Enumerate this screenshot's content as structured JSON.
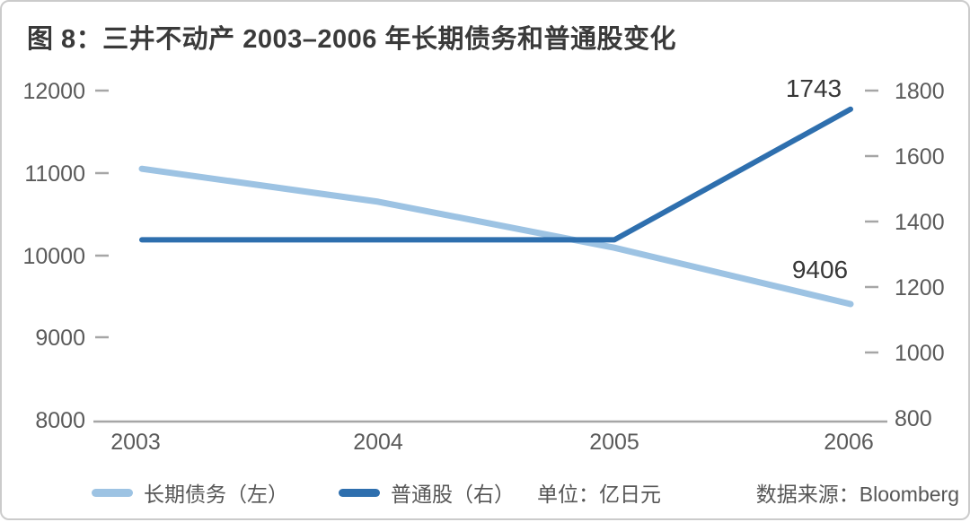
{
  "card": {
    "title": "图 8：三井不动产 2003–2006 年长期债务和普通股变化"
  },
  "chart_data": {
    "type": "line",
    "categories": [
      "2003",
      "2004",
      "2005",
      "2006"
    ],
    "series": [
      {
        "name": "长期债务（左）",
        "axis": "left",
        "color": "#9dc3e3",
        "stroke_width": 7,
        "values": [
          11050,
          10650,
          10090,
          9406
        ]
      },
      {
        "name": "普通股（右）",
        "axis": "right",
        "color": "#2e6fae",
        "stroke_width": 6,
        "values": [
          1344,
          1344,
          1344,
          1743
        ]
      }
    ],
    "left_axis": {
      "min": 8000,
      "max": 12000,
      "ticks": [
        "12000",
        "11000",
        "10000",
        "9000",
        "8000"
      ]
    },
    "right_axis": {
      "min": 800,
      "max": 1800,
      "ticks": [
        "1800",
        "1600",
        "1400",
        "1200",
        "1000",
        "800"
      ]
    },
    "x_ticks": [
      "2003",
      "2004",
      "2005",
      "2006"
    ],
    "annotations": [
      {
        "text": "1743",
        "series": "普通股（右）",
        "category": "2006"
      },
      {
        "text": "9406",
        "series": "长期债务（左）",
        "category": "2006"
      }
    ],
    "grid": false,
    "legend_position": "bottom"
  },
  "legend": {
    "items": [
      {
        "label": "长期债务（左）",
        "color": "#9dc3e3"
      },
      {
        "label": "普通股（右）",
        "color": "#2e6fae"
      }
    ]
  },
  "footer": {
    "unit_label": "单位：亿日元",
    "source_label": "数据来源：Bloomberg"
  }
}
